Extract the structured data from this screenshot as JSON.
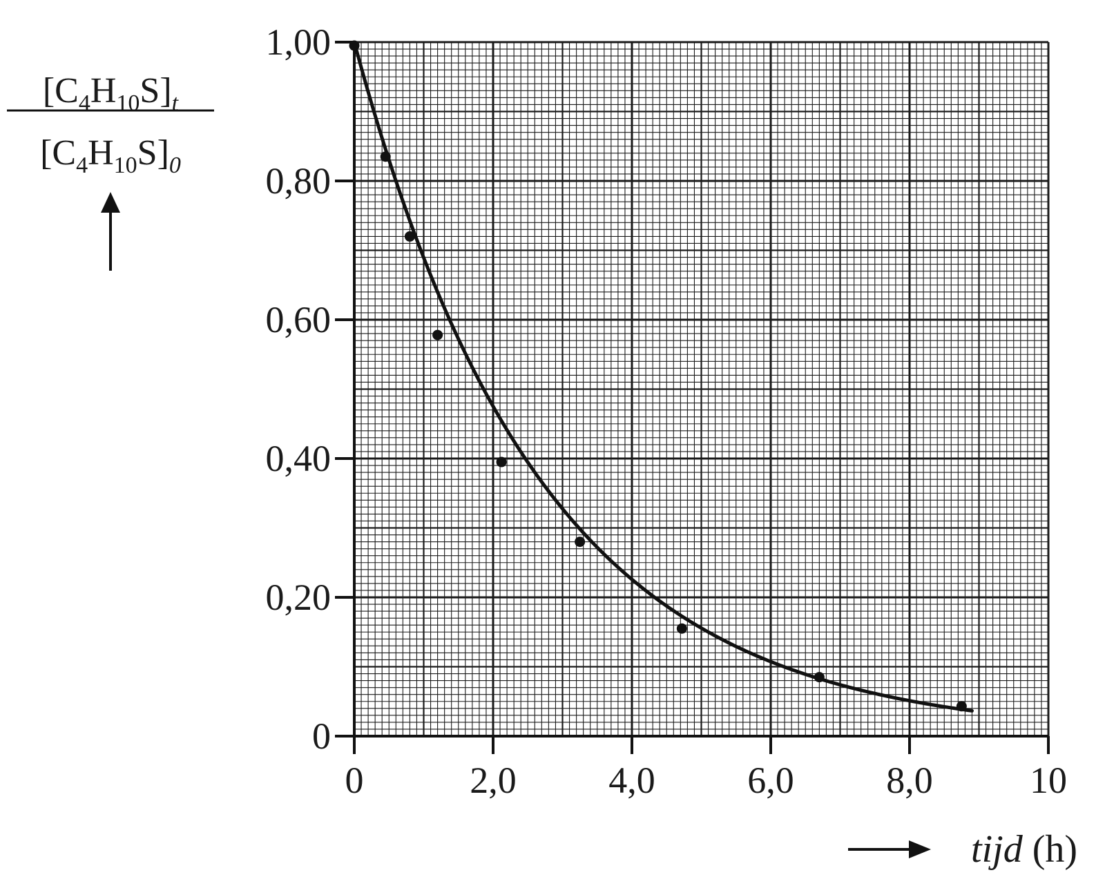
{
  "chart_data": {
    "type": "scatter",
    "title": "",
    "xlabel": {
      "var": "tijd",
      "unit": "(h)"
    },
    "ylabel": {
      "numerator": {
        "b1": "[C",
        "s1": "4",
        "b2": "H",
        "s2": "10",
        "b3": "S]",
        "s3": "t"
      },
      "denominator": {
        "b1": "[C",
        "s1": "4",
        "b2": "H",
        "s2": "10",
        "b3": "S]",
        "s3": "0"
      }
    },
    "xlim": [
      0,
      10
    ],
    "ylim": [
      0,
      1.0
    ],
    "x_ticks": [
      {
        "value": 0,
        "label": "0"
      },
      {
        "value": 2,
        "label": "2,0"
      },
      {
        "value": 4,
        "label": "4,0"
      },
      {
        "value": 6,
        "label": "6,0"
      },
      {
        "value": 8,
        "label": "8,0"
      },
      {
        "value": 10,
        "label": "10"
      }
    ],
    "y_ticks": [
      {
        "value": 0,
        "label": "0"
      },
      {
        "value": 0.2,
        "label": "0,20"
      },
      {
        "value": 0.4,
        "label": "0,40"
      },
      {
        "value": 0.6,
        "label": "0,60"
      },
      {
        "value": 0.8,
        "label": "0,80"
      },
      {
        "value": 1.0,
        "label": "1,00"
      }
    ],
    "grid": true,
    "series": [
      {
        "points": [
          {
            "x": 0.0,
            "y": 0.995
          },
          {
            "x": 0.45,
            "y": 0.835
          },
          {
            "x": 0.8,
            "y": 0.72
          },
          {
            "x": 1.2,
            "y": 0.578
          },
          {
            "x": 2.12,
            "y": 0.395
          },
          {
            "x": 3.25,
            "y": 0.28
          },
          {
            "x": 4.72,
            "y": 0.155
          },
          {
            "x": 6.7,
            "y": 0.085
          },
          {
            "x": 8.75,
            "y": 0.043
          }
        ]
      }
    ],
    "fit_curve": {
      "model": "exponential",
      "y0": 1.0,
      "k": 0.372,
      "x_range": [
        0,
        8.9
      ]
    },
    "colors": {
      "ink": "#111111",
      "grid": "#1a1a1a"
    }
  }
}
